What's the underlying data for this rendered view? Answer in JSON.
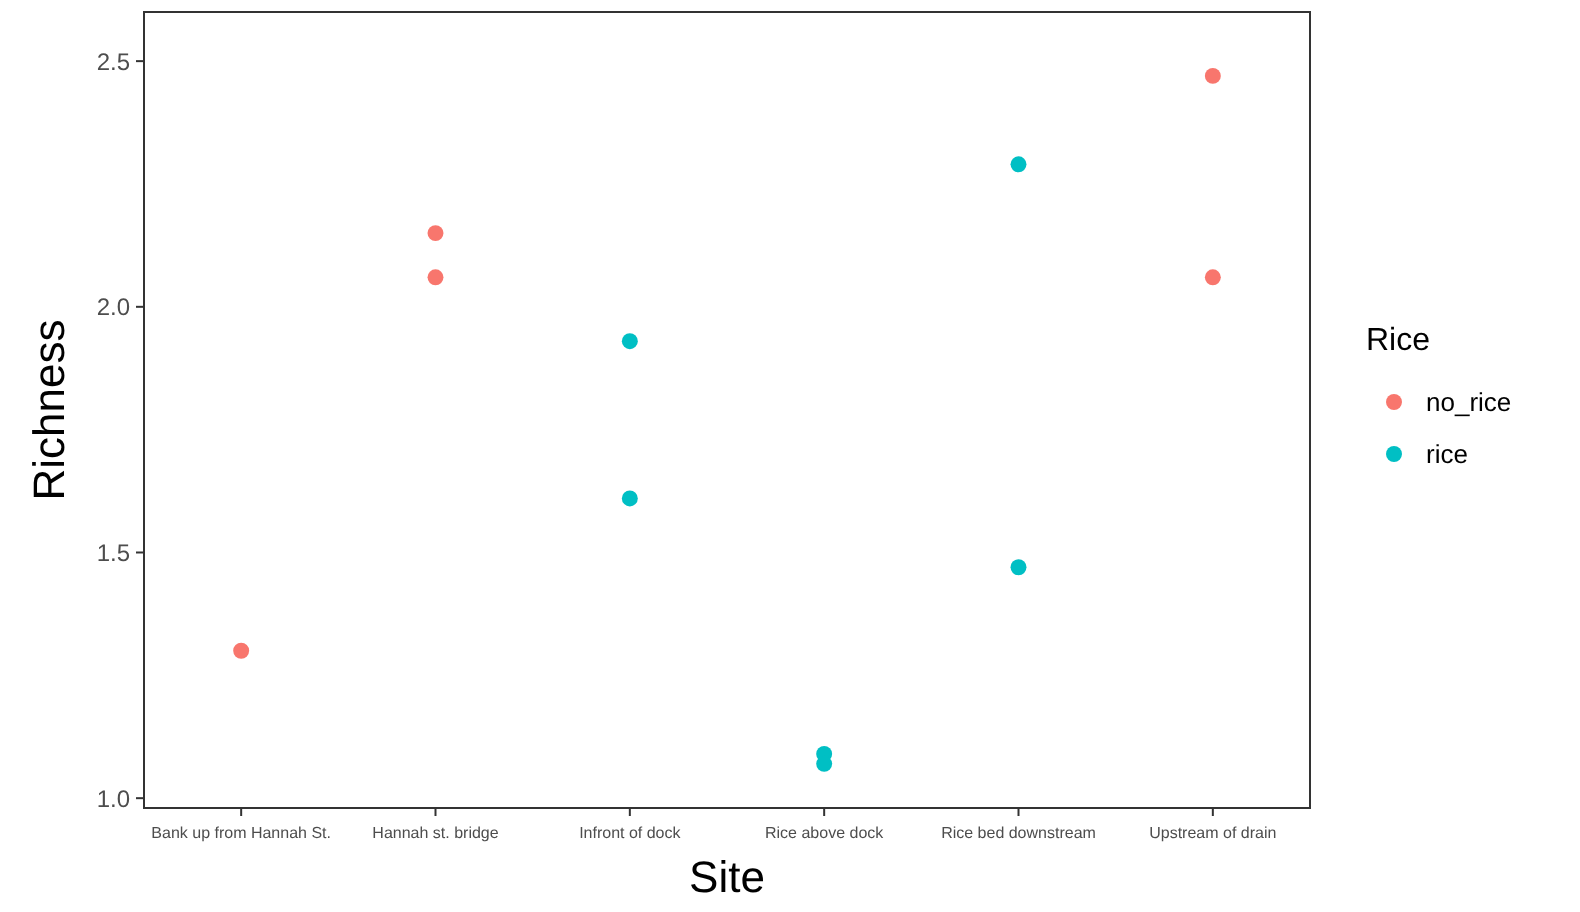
{
  "chart_data": {
    "type": "scatter",
    "xlabel": "Site",
    "ylabel": "Richness",
    "legend_title": "Rice",
    "legend": "right",
    "marker": "circle",
    "grid": false,
    "categories": [
      "Bank up from Hannah St.",
      "Hannah st. bridge",
      "Infront of dock",
      "Rice above dock",
      "Rice bed downstream",
      "Upstream of drain"
    ],
    "ylim": [
      0.98,
      2.6
    ],
    "yticks": [
      {
        "value": 1,
        "label": "1.0"
      },
      {
        "value": 1.5,
        "label": "1.5"
      },
      {
        "value": 2,
        "label": "2.0"
      },
      {
        "value": 2.5,
        "label": "2.5"
      }
    ],
    "series": [
      {
        "name": "no_rice",
        "color": "#f8766d",
        "x": [
          "Bank up from Hannah St.",
          "Hannah st. bridge",
          "Hannah st. bridge",
          "Upstream of drain",
          "Upstream of drain"
        ],
        "values": [
          1.3,
          2.15,
          2.06,
          2.47,
          2.06
        ]
      },
      {
        "name": "rice",
        "color": "#00bfc4",
        "x": [
          "Infront of dock",
          "Infront of dock",
          "Rice above dock",
          "Rice above dock",
          "Rice bed downstream",
          "Rice bed downstream"
        ],
        "values": [
          1.93,
          1.61,
          1.09,
          1.07,
          2.29,
          1.47
        ]
      }
    ]
  }
}
